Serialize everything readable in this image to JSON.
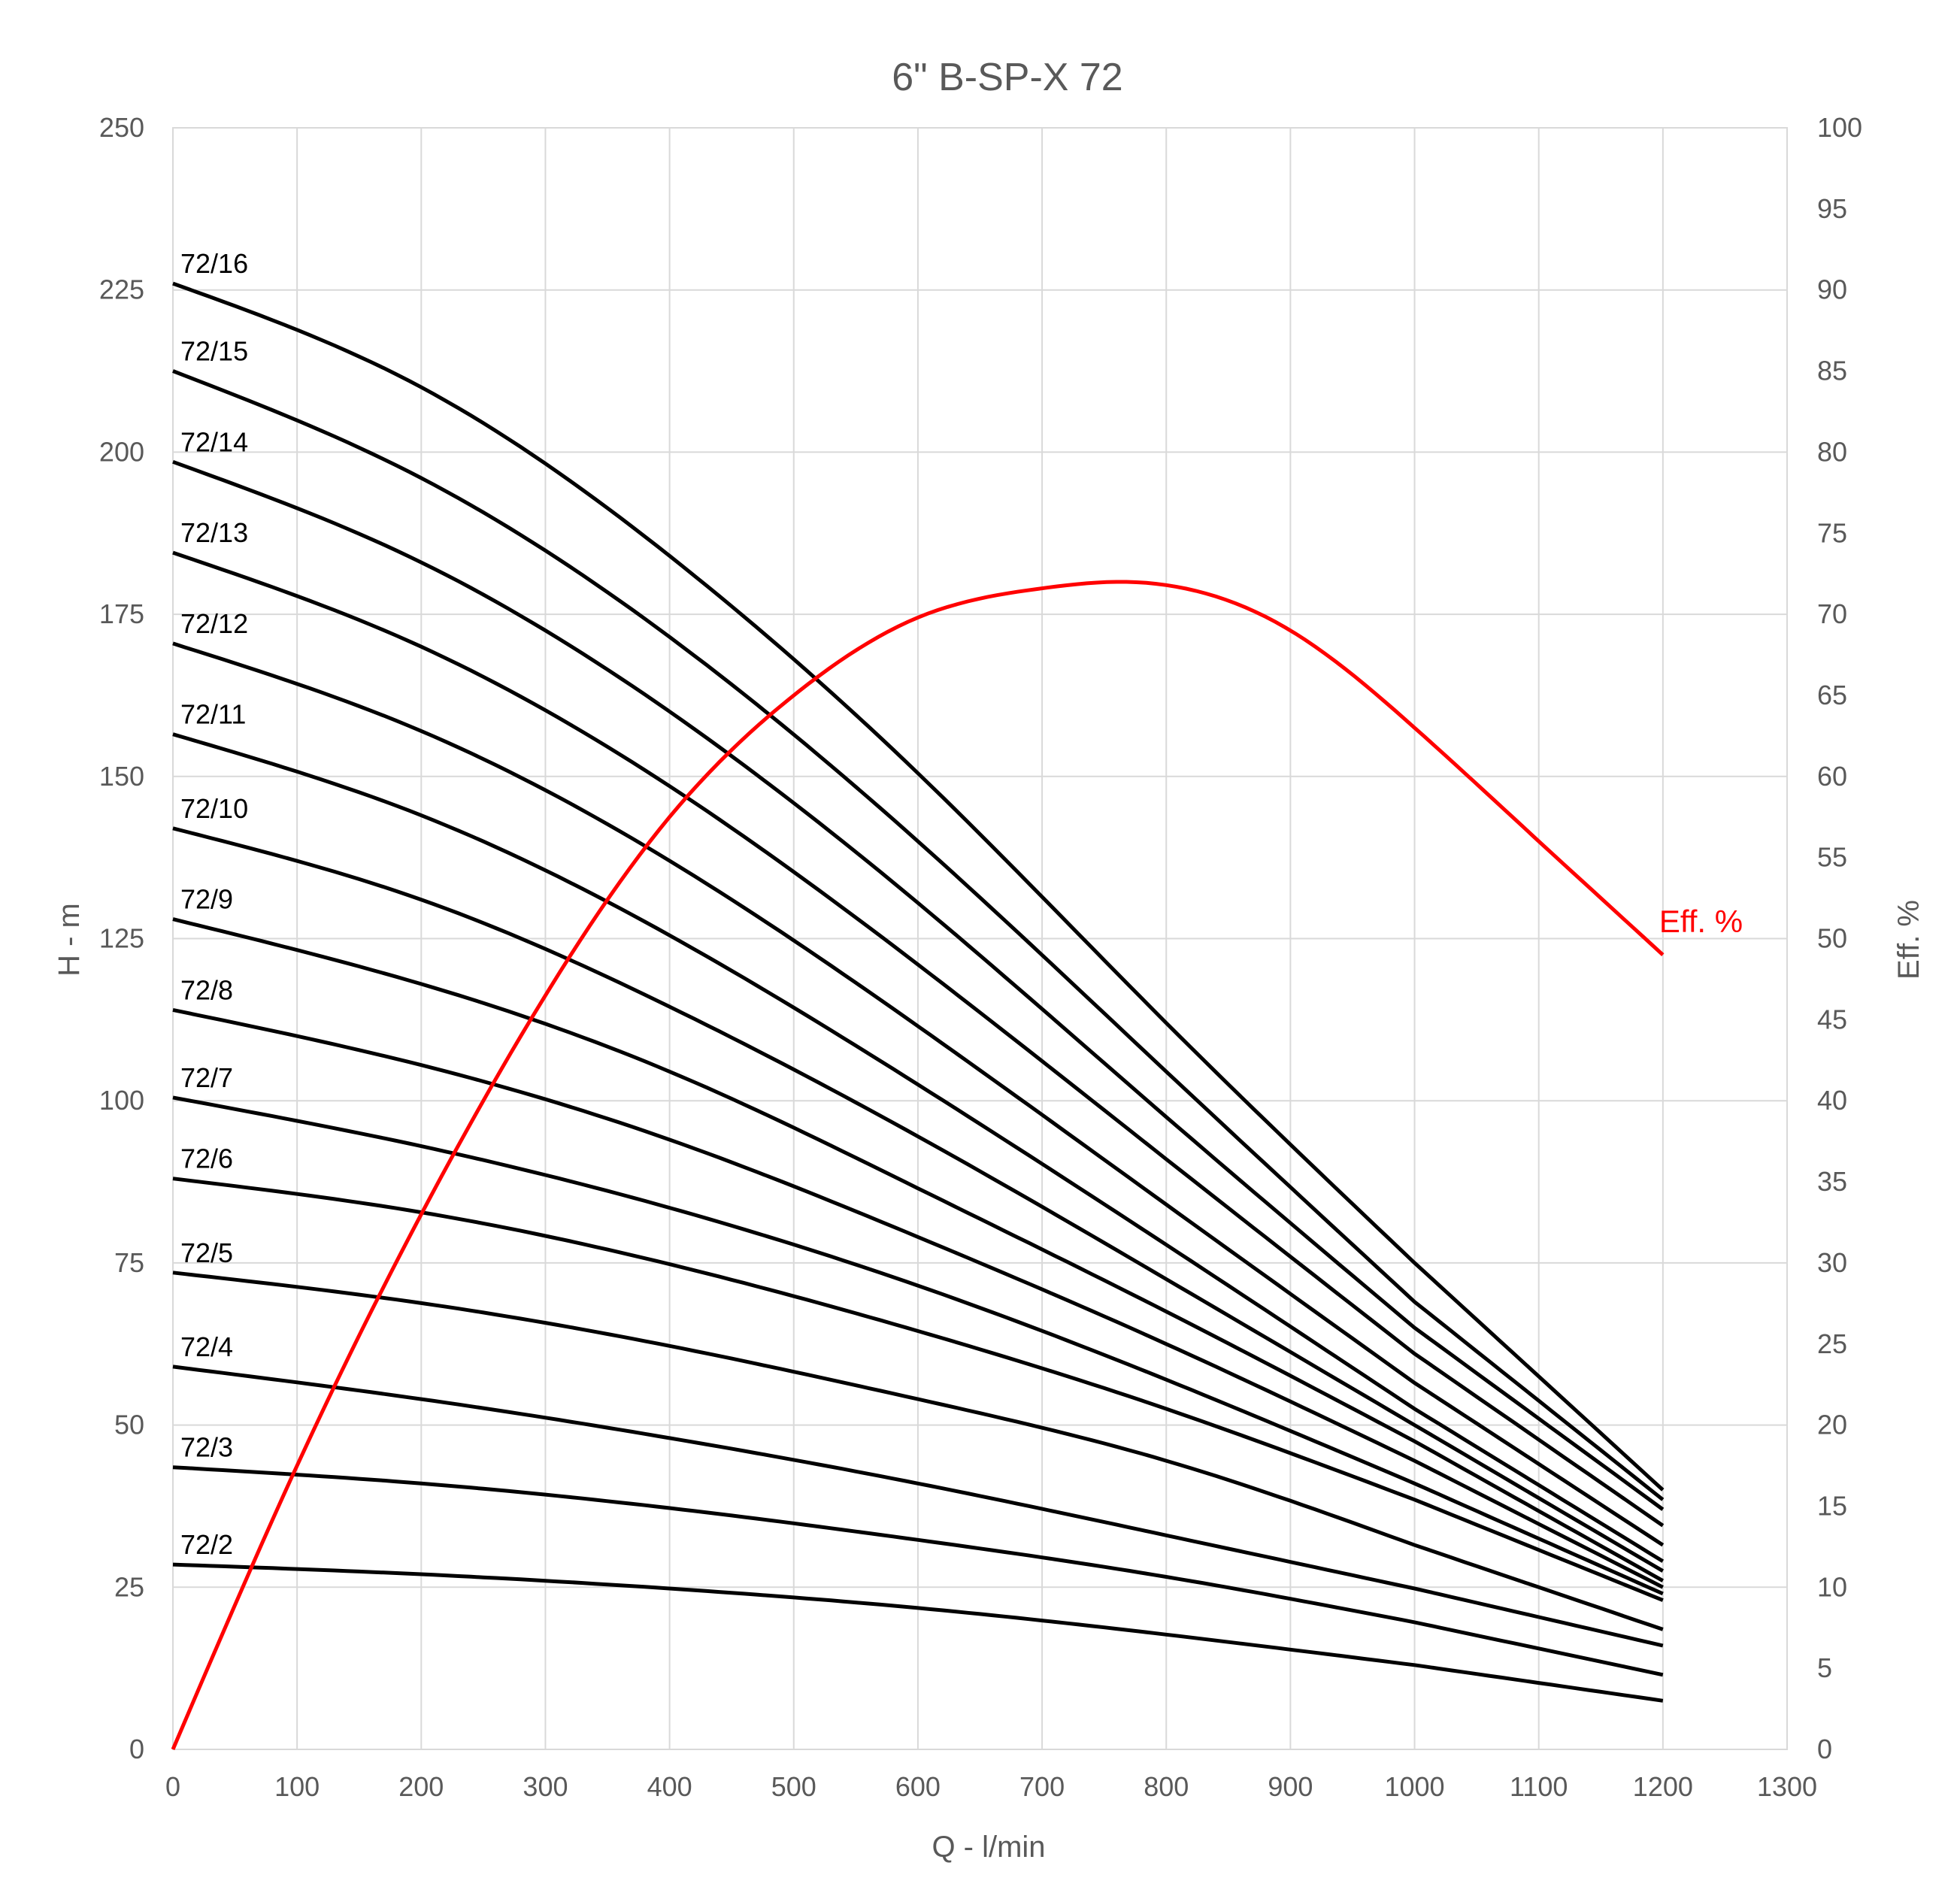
{
  "chart_data": {
    "type": "line",
    "title": "6\" B-SP-X 72",
    "xlabel": "Q - l/min",
    "ylabel": "H - m",
    "y2label": "Eff. %",
    "xlim": [
      0,
      1300
    ],
    "ylim": [
      0,
      250
    ],
    "y2lim": [
      0,
      100
    ],
    "x_ticks": [
      0,
      100,
      200,
      300,
      400,
      500,
      600,
      700,
      800,
      900,
      1000,
      1100,
      1200,
      1300
    ],
    "y_ticks": [
      0,
      25,
      50,
      75,
      100,
      125,
      150,
      175,
      200,
      225,
      250
    ],
    "y2_ticks": [
      0,
      5,
      10,
      15,
      20,
      25,
      30,
      35,
      40,
      45,
      50,
      55,
      60,
      65,
      70,
      75,
      80,
      85,
      90,
      95,
      100
    ],
    "grid": true,
    "legend": "none",
    "x": [
      0,
      200,
      400,
      600,
      800,
      1000,
      1200
    ],
    "series": [
      {
        "name": "72/2",
        "values": [
          28.5,
          27.0,
          24.8,
          21.8,
          17.7,
          13.0,
          7.5
        ],
        "color": "#000000"
      },
      {
        "name": "72/3",
        "values": [
          43.5,
          41.0,
          37.2,
          32.3,
          26.6,
          19.6,
          11.5
        ],
        "color": "#000000"
      },
      {
        "name": "72/4",
        "values": [
          59.0,
          54.0,
          48.0,
          41.0,
          33.0,
          24.8,
          16.0
        ],
        "color": "#000000"
      },
      {
        "name": "72/5",
        "values": [
          73.5,
          68.8,
          62.2,
          54.0,
          44.5,
          31.5,
          18.5
        ],
        "color": "#000000"
      },
      {
        "name": "72/6",
        "values": [
          88.0,
          82.8,
          74.8,
          64.5,
          52.5,
          38.5,
          23.0
        ],
        "color": "#000000"
      },
      {
        "name": "72/7",
        "values": [
          100.5,
          93.0,
          83.5,
          71.5,
          57.0,
          41.0,
          24.0
        ],
        "color": "#000000"
      },
      {
        "name": "72/8",
        "values": [
          114.0,
          105.5,
          94.0,
          79.0,
          62.5,
          44.5,
          25.0
        ],
        "color": "#000000"
      },
      {
        "name": "72/9",
        "values": [
          128.0,
          118.0,
          104.5,
          86.5,
          67.5,
          47.5,
          26.0
        ],
        "color": "#000000"
      },
      {
        "name": "72/10",
        "values": [
          142.0,
          131.0,
          114.5,
          94.5,
          72.5,
          50.0,
          27.5
        ],
        "color": "#000000"
      },
      {
        "name": "72/11",
        "values": [
          156.5,
          144.0,
          125.5,
          102.5,
          77.8,
          52.5,
          29.0
        ],
        "color": "#000000"
      },
      {
        "name": "72/12",
        "values": [
          170.5,
          157.0,
          137.0,
          111.5,
          84.0,
          56.5,
          31.5
        ],
        "color": "#000000"
      },
      {
        "name": "72/13",
        "values": [
          184.5,
          170.0,
          148.5,
          121.0,
          91.0,
          61.0,
          34.5
        ],
        "color": "#000000"
      },
      {
        "name": "72/14",
        "values": [
          198.5,
          183.0,
          160.0,
          130.5,
          97.5,
          65.0,
          37.0
        ],
        "color": "#000000"
      },
      {
        "name": "72/15",
        "values": [
          212.5,
          196.0,
          171.5,
          140.0,
          104.5,
          69.0,
          38.5
        ],
        "color": "#000000"
      },
      {
        "name": "72/16",
        "values": [
          226.0,
          210.0,
          184.0,
          150.5,
          112.0,
          75.0,
          40.0
        ],
        "color": "#000000"
      }
    ],
    "efficiency": {
      "name": "Eff. %",
      "axis": "right",
      "color": "#ff0000",
      "x": [
        0,
        100,
        200,
        300,
        400,
        500,
        600,
        700,
        765,
        800,
        900,
        1000,
        1100,
        1200
      ],
      "values": [
        0,
        17.5,
        33.0,
        46.5,
        57.5,
        65.0,
        69.8,
        71.6,
        72.0,
        71.8,
        69.0,
        63.0,
        56.0,
        49.0
      ]
    }
  }
}
